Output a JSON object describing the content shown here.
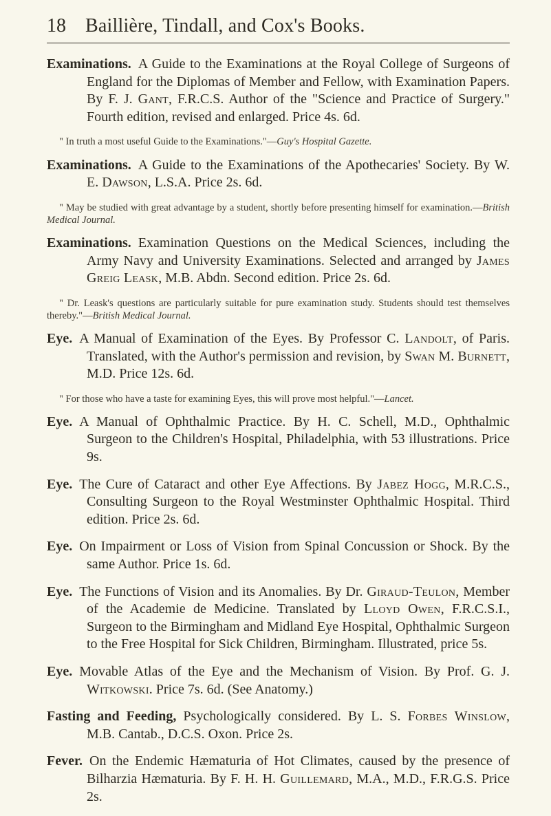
{
  "page_number": "18",
  "running_title": "Baillière, Tindall, and Cox's Books.",
  "entries": [
    {
      "head": "Examinations.",
      "body_html": "A Guide to the Examinations at the Royal College of Surgeons of England for the Diplomas of Member and Fellow, with Examination Papers. By F. J. <span class='sc'>Gant</span>, F.R.C.S. Author of the \"Science and Practice of Surgery.\" Fourth edition, revised and enlarged. Price 4s. 6d.",
      "note_html": "\" In truth a most useful Guide to the Examinations.\"—<span class='i'>Guy's Hospital Gazette.</span>"
    },
    {
      "head": "Examinations.",
      "body_html": "A Guide to the Examinations of the Apothecaries' Society. By W. E. <span class='sc'>Dawson</span>, L.S.A. Price 2s. 6d.",
      "note_html": "\" May be studied with great advantage by a student, shortly before presenting himself for examination.—<span class='i'>British Medical Journal.</span>"
    },
    {
      "head": "Examinations.",
      "body_html": "Examination Questions on the Medical Sciences, including the Army Navy and University Examinations. Selected and arranged by <span class='sc'>James Greig Leask</span>, M.B. Abdn. Second edition. Price 2s. 6d.",
      "note_html": "\" Dr. Leask's questions are particularly suitable for pure examination study. Students should test themselves thereby.\"—<span class='i'>British Medical Journal.</span>"
    },
    {
      "head": "Eye.",
      "body_html": "A Manual of Examination of the Eyes. By Professor C. <span class='sc'>Landolt</span>, of Paris. Translated, with the Author's permission and revision, by <span class='sc'>Swan</span> M. <span class='sc'>Burnett</span>, M.D. Price 12s. 6d.",
      "note_html": "\" For those who have a taste for examining Eyes, this will prove most helpful.\"—<span class='i'>Lancet.</span>"
    },
    {
      "head": "Eye.",
      "body_html": "A Manual of Ophthalmic Practice. By H. C. Schell, M.D., Ophthalmic Surgeon to the Children's Hospital, Philadelphia, with 53 illustrations. Price 9s."
    },
    {
      "head": "Eye.",
      "body_html": "The Cure of Cataract and other Eye Affections. By <span class='sc'>Jabez Hogg</span>, M.R.C.S., Consulting Surgeon to the Royal Westminster Ophthalmic Hospital. Third edition. Price 2s. 6d."
    },
    {
      "head": "Eye.",
      "body_html": "On Impairment or Loss of Vision from Spinal Concussion or Shock. By the same Author. Price 1s. 6d."
    },
    {
      "head": "Eye.",
      "body_html": "The Functions of Vision and its Anomalies. By Dr. <span class='sc'>Giraud-Teulon</span>, Member of the Academie de Medicine. Translated by <span class='sc'>Lloyd Owen</span>, F.R.C.S.I., Surgeon to the Birmingham and Midland Eye Hospital, Ophthalmic Surgeon to the Free Hospital for Sick Children, Birmingham. Illustrated, price 5s."
    },
    {
      "head": "Eye.",
      "body_html": "Movable Atlas of the Eye and the Mechanism of Vision. By Prof. G. J. <span class='sc'>Witkowski</span>. Price 7s. 6d. (See Anatomy.)"
    },
    {
      "head": "Fasting and Feeding,",
      "body_html": "Psychologically considered. By L. S. <span class='sc'>Forbes Winslow</span>, M.B. Cantab., D.C.S. Oxon. Price 2s."
    },
    {
      "head": "Fever.",
      "body_html": "On the Endemic Hæmaturia of Hot Climates, caused by the presence of Bilharzia Hæmaturia. By F. H. H. <span class='sc'>Guillemard</span>, M.A., M.D., F.R.G.S. Price 2s."
    }
  ]
}
